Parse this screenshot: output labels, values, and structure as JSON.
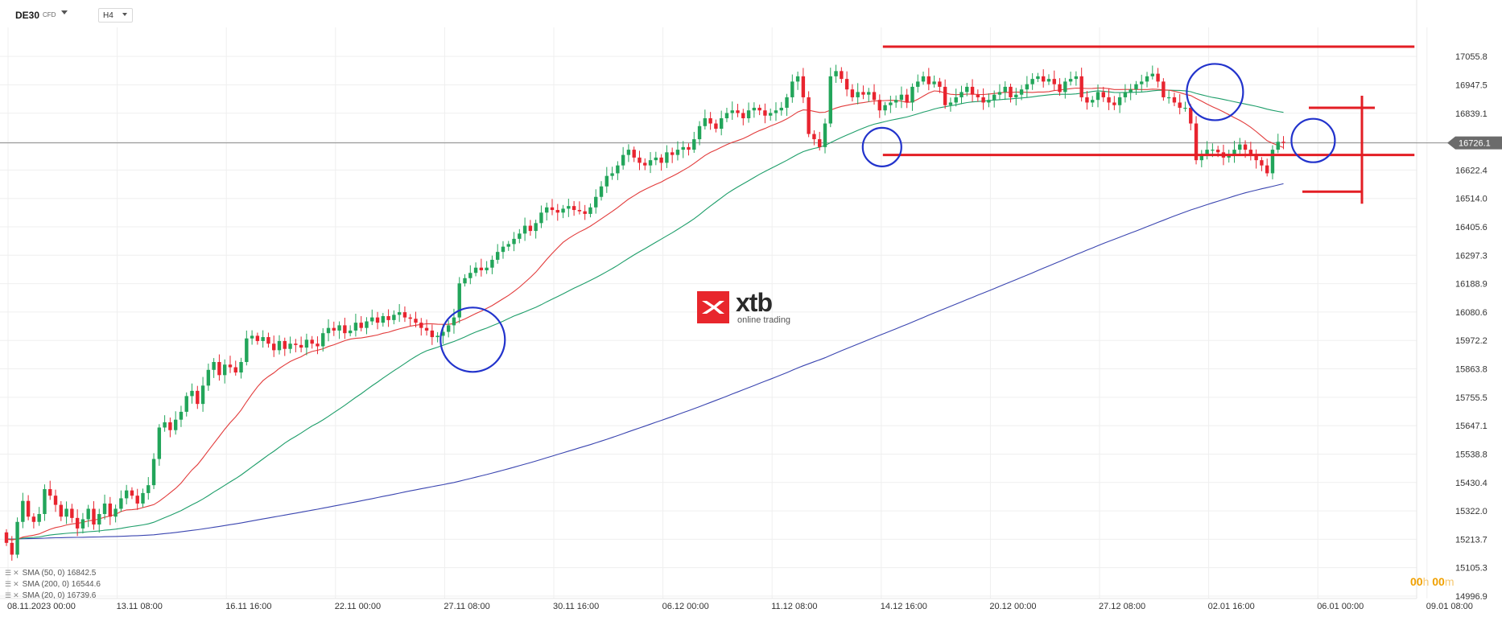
{
  "toolbar": {
    "symbol": "DE30",
    "symbol_type": "CFD",
    "timeframe": "H4"
  },
  "logo": {
    "name": "xtb",
    "tagline": "online trading"
  },
  "timer": {
    "hours": "00",
    "h_unit": "h",
    "minutes": "00",
    "m_unit": "m"
  },
  "legend": [
    {
      "label": "SMA (50, 0)",
      "value": "16842.5",
      "color": "#1e9e6a"
    },
    {
      "label": "SMA (200, 0)",
      "value": "16544.6",
      "color": "#3a45b0"
    },
    {
      "label": "SMA (20, 0)",
      "value": "16739.6",
      "color": "#e23b3b"
    }
  ],
  "colors": {
    "bull": "#22a55a",
    "bear": "#e8242f",
    "sma20": "#e23b3b",
    "sma50": "#1e9e6a",
    "sma200": "#3a45b0",
    "annotation": "#e31e24",
    "circle": "#2233cc",
    "price_badge": "#6b6b6b",
    "timer": "#f0a000"
  },
  "chart_data": {
    "type": "candlestick",
    "instrument": "DE30",
    "timeframe": "H4",
    "y_range": [
      14996.9,
      17150
    ],
    "y_ticks": [
      "17055.8",
      "16947.5",
      "16839.1",
      "16730.8",
      "16622.4",
      "16514.0",
      "16405.6",
      "16297.3",
      "16188.9",
      "16080.6",
      "15972.2",
      "15863.8",
      "15755.5",
      "15647.1",
      "15538.8",
      "15430.4",
      "15322.0",
      "15213.7",
      "15105.3",
      "14996.9"
    ],
    "x_ticks": [
      "08.11.2023   00:00",
      "13.11  08:00",
      "16.11  16:00",
      "22.11  00:00",
      "27.11  08:00",
      "30.11  16:00",
      "06.12  00:00",
      "11.12  08:00",
      "14.12  16:00",
      "20.12  00:00",
      "27.12  08:00",
      "02.01  16:00",
      "06.01  00:00",
      "09.01  08:00"
    ],
    "x_tick_index": [
      0,
      20,
      40,
      60,
      80,
      100,
      120,
      140,
      160,
      180,
      200,
      220,
      240,
      260
    ],
    "current_price": "16726.1",
    "current_value": 16726.1,
    "closes": [
      15200,
      15155,
      15280,
      15360,
      15300,
      15280,
      15310,
      15405,
      15380,
      15345,
      15300,
      15330,
      15295,
      15255,
      15290,
      15330,
      15270,
      15310,
      15350,
      15300,
      15330,
      15370,
      15400,
      15380,
      15350,
      15390,
      15420,
      15520,
      15640,
      15660,
      15630,
      15670,
      15700,
      15760,
      15780,
      15730,
      15800,
      15860,
      15890,
      15840,
      15880,
      15870,
      15850,
      15890,
      15980,
      15990,
      15970,
      15985,
      15960,
      15935,
      15970,
      15940,
      15960,
      15955,
      15945,
      15975,
      15960,
      15950,
      16000,
      16020,
      16010,
      16030,
      16000,
      16010,
      16040,
      16020,
      16045,
      16060,
      16040,
      16065,
      16050,
      16070,
      16080,
      16060,
      16055,
      16040,
      16020,
      16010,
      15985,
      15990,
      16005,
      16030,
      16060,
      16190,
      16210,
      16230,
      16250,
      16240,
      16250,
      16280,
      16310,
      16330,
      16340,
      16360,
      16380,
      16410,
      16390,
      16420,
      16460,
      16480,
      16470,
      16460,
      16475,
      16485,
      16470,
      16465,
      16455,
      16480,
      16520,
      16560,
      16600,
      16610,
      16640,
      16680,
      16700,
      16670,
      16650,
      16640,
      16660,
      16670,
      16650,
      16690,
      16680,
      16700,
      16710,
      16700,
      16740,
      16790,
      16820,
      16800,
      16780,
      16820,
      16840,
      16850,
      16840,
      16820,
      16850,
      16860,
      16850,
      16830,
      16840,
      16850,
      16860,
      16900,
      16960,
      16980,
      16900,
      16760,
      16740,
      16710,
      16800,
      16980,
      17000,
      16970,
      16930,
      16900,
      16920,
      16910,
      16920,
      16890,
      16850,
      16870,
      16880,
      16890,
      16910,
      16880,
      16940,
      16960,
      16980,
      16950,
      16960,
      16940,
      16870,
      16880,
      16900,
      16920,
      16940,
      16910,
      16900,
      16880,
      16890,
      16910,
      16920,
      16940,
      16900,
      16910,
      16930,
      16950,
      16970,
      16980,
      16960,
      16970,
      16950,
      16920,
      16960,
      16970,
      16980,
      16900,
      16880,
      16890,
      16920,
      16900,
      16880,
      16870,
      16900,
      16920,
      16930,
      16950,
      16960,
      16980,
      16990,
      16960,
      16900,
      16900,
      16880,
      16860,
      16860,
      16800,
      16660,
      16680,
      16700,
      16700,
      16690,
      16670,
      16680,
      16700,
      16720,
      16700,
      16680,
      16660,
      16640,
      16610,
      16700,
      16730,
      16726
    ],
    "sma_rendered": "computed from closes (periods 20, 50, 200)",
    "annotations": [
      {
        "type": "resistance",
        "price": 17093,
        "from_index": 160,
        "to_index": 258
      },
      {
        "type": "support",
        "price": 16680,
        "from_index": 160,
        "to_index": 258
      },
      {
        "type": "range_marker",
        "price_top": 16860,
        "price_bottom": 16540
      },
      {
        "type": "circle",
        "index": 85,
        "price": 15975
      },
      {
        "type": "circle",
        "index": 160,
        "price": 16710
      },
      {
        "type": "circle",
        "index": 221,
        "price": 16920
      },
      {
        "type": "circle",
        "index": 239,
        "price": 16735
      }
    ]
  }
}
